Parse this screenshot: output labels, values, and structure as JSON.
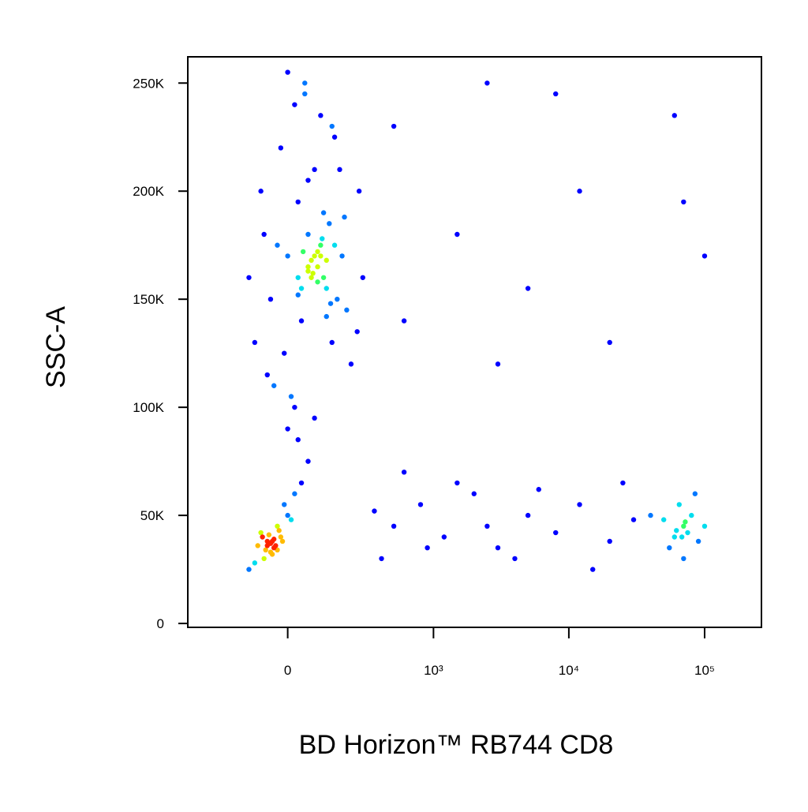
{
  "chart_data": {
    "type": "scatter",
    "x_label": "BD Horizon™ RB744 CD8",
    "y_label": "SSC-A",
    "xscale": "biexponential",
    "xlim": [
      -447,
      262144
    ],
    "ylim": [
      -1800,
      262144
    ],
    "xticks": [
      0,
      {
        "value": 1000,
        "label": "10³"
      },
      {
        "value": 10000,
        "label": "10⁴"
      },
      {
        "value": 100000,
        "label": "10⁵"
      }
    ],
    "yticks": [
      0,
      {
        "value": 50000,
        "label": "50K"
      },
      {
        "value": 100000,
        "label": "100K"
      },
      {
        "value": 150000,
        "label": "150K"
      },
      {
        "value": 200000,
        "label": "200K"
      },
      {
        "value": 250000,
        "label": "250K"
      }
    ],
    "colormap": [
      "#0000ff",
      "#0077ff",
      "#00ddee",
      "#33ff66",
      "#ccff00",
      "#ffbb00",
      "#ff2200"
    ],
    "x": [
      -100,
      -50,
      0,
      30,
      60,
      90,
      120,
      150,
      200,
      250,
      -80,
      -20,
      20,
      50,
      80,
      110,
      140,
      180,
      220,
      -60,
      10,
      40,
      70,
      100,
      130,
      160,
      -30,
      30,
      60,
      90,
      120,
      170,
      -120,
      -10,
      45,
      75,
      105,
      135,
      190,
      260,
      0,
      50,
      100,
      150,
      -40,
      20,
      80,
      140,
      60,
      90,
      40,
      110,
      70,
      100,
      -70,
      280,
      30,
      120,
      60,
      80,
      -60,
      -40,
      -80,
      -20,
      -50,
      -30,
      -70,
      0,
      -90,
      -45,
      -55,
      -35,
      -65,
      -25,
      -10,
      20,
      40,
      -100,
      -120,
      10,
      -50,
      -40,
      -60,
      -30,
      60,
      30,
      0,
      -75,
      -15,
      -45,
      70000,
      60000,
      80000,
      55000,
      75000,
      65000,
      90000,
      50000,
      85000,
      70000,
      40000,
      100000,
      62000,
      72000,
      68000,
      500,
      800,
      1200,
      2000,
      3000,
      5000,
      8000,
      12000,
      20000,
      30000,
      600,
      1500,
      2500,
      4000,
      6000,
      15000,
      400,
      350,
      25000,
      900,
      2500,
      8000,
      500,
      12000,
      1500,
      60000,
      70000,
      600,
      3000,
      100000,
      5000,
      20000
    ],
    "y": [
      130000,
      150000,
      170000,
      160000,
      180000,
      165000,
      155000,
      175000,
      145000,
      135000,
      200000,
      220000,
      240000,
      250000,
      210000,
      190000,
      230000,
      170000,
      120000,
      115000,
      105000,
      140000,
      160000,
      170000,
      185000,
      150000,
      175000,
      195000,
      205000,
      158000,
      168000,
      210000,
      160000,
      125000,
      172000,
      162000,
      178000,
      148000,
      188000,
      200000,
      255000,
      245000,
      235000,
      225000,
      110000,
      100000,
      95000,
      130000,
      165000,
      172000,
      155000,
      160000,
      168000,
      175000,
      180000,
      160000,
      152000,
      142000,
      163000,
      170000,
      38000,
      35000,
      42000,
      40000,
      33000,
      45000,
      30000,
      50000,
      36000,
      38000,
      41000,
      36000,
      34000,
      43000,
      55000,
      60000,
      65000,
      28000,
      25000,
      48000,
      37000,
      39000,
      36000,
      34000,
      75000,
      85000,
      90000,
      40000,
      38000,
      32000,
      45000,
      40000,
      50000,
      35000,
      42000,
      55000,
      38000,
      48000,
      60000,
      30000,
      50000,
      45000,
      43000,
      47000,
      40000,
      45000,
      55000,
      40000,
      60000,
      35000,
      50000,
      42000,
      55000,
      38000,
      48000,
      70000,
      65000,
      45000,
      30000,
      62000,
      25000,
      30000,
      52000,
      65000,
      35000,
      250000,
      245000,
      230000,
      200000,
      180000,
      235000,
      195000,
      140000,
      120000,
      170000,
      155000,
      130000
    ]
  }
}
